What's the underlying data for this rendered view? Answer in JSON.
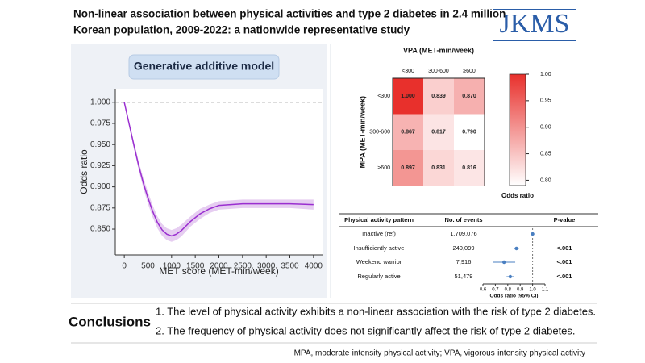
{
  "header": {
    "title_lines": [
      "Non-linear association between physical activities and type 2 diabetes in 2.4 million",
      "Korean population, 2009-2022: a nationwide representative study"
    ],
    "logo": "JKMS"
  },
  "chart_data": [
    {
      "type": "line",
      "subtitle": "Generative additive model",
      "xlabel": "MET score (MET-min/week)",
      "ylabel": "Odds ratio",
      "x": [
        0,
        100,
        200,
        300,
        400,
        500,
        600,
        700,
        800,
        900,
        1000,
        1100,
        1200,
        1400,
        1600,
        1800,
        2000,
        2500,
        3000,
        3500,
        4000
      ],
      "series": [
        {
          "color": "#9a2fd0",
          "values": [
            1.0,
            0.975,
            0.95,
            0.926,
            0.905,
            0.887,
            0.871,
            0.858,
            0.849,
            0.844,
            0.842,
            0.844,
            0.848,
            0.859,
            0.868,
            0.874,
            0.878,
            0.88,
            0.88,
            0.88,
            0.879
          ],
          "ci_lower": [
            1.0,
            0.972,
            0.946,
            0.921,
            0.899,
            0.88,
            0.864,
            0.851,
            0.842,
            0.837,
            0.835,
            0.837,
            0.841,
            0.853,
            0.862,
            0.869,
            0.873,
            0.875,
            0.875,
            0.875,
            0.873
          ],
          "ci_upper": [
            1.0,
            0.978,
            0.954,
            0.931,
            0.911,
            0.894,
            0.878,
            0.865,
            0.856,
            0.851,
            0.849,
            0.851,
            0.855,
            0.865,
            0.874,
            0.879,
            0.883,
            0.885,
            0.885,
            0.885,
            0.885
          ],
          "band_color": "#e6cdf1"
        }
      ],
      "reference_line": 1.0,
      "xlim": [
        -190,
        4190
      ],
      "xticks": [
        0,
        500,
        1000,
        1500,
        2000,
        2500,
        3000,
        3500,
        4000
      ],
      "ylim": [
        0.8195,
        1.016
      ],
      "yticks": [
        {
          "value": 0.85,
          "label": "0.850"
        },
        {
          "value": 0.875,
          "label": "0.875"
        },
        {
          "value": 0.9,
          "label": "0.900"
        },
        {
          "value": 0.925,
          "label": "0.925"
        },
        {
          "value": 0.95,
          "label": "0.950"
        },
        {
          "value": 0.975,
          "label": "0.975"
        },
        {
          "value": 1.0,
          "label": "1.000"
        }
      ]
    },
    {
      "type": "heatmap",
      "title": "VPA (MET-min/week)",
      "ylabel": "MPA (MET-min/week)",
      "columns": [
        "<300",
        "300-600",
        "≥600"
      ],
      "rows": [
        "<300",
        "300-600",
        "≥600"
      ],
      "values": [
        [
          1.0,
          0.839,
          0.87
        ],
        [
          0.867,
          0.817,
          0.79
        ],
        [
          0.897,
          0.831,
          0.816
        ]
      ],
      "value_labels": [
        [
          "1.000",
          "0.839",
          "0.870"
        ],
        [
          "0.867",
          "0.817",
          "0.790"
        ],
        [
          "0.897",
          "0.831",
          "0.816"
        ]
      ],
      "color": "#e8302c",
      "colorbar_label": "Odds ratio",
      "clim": [
        0.79,
        1.0
      ],
      "colorbar_ticks": [
        {
          "value": 0.8,
          "label": "0.80"
        },
        0.85,
        {
          "value": 0.9,
          "label": "0.90"
        },
        0.95,
        {
          "value": 1.0,
          "label": "1.00"
        }
      ]
    },
    {
      "type": "forest",
      "columns": [
        "Physical activity pattern",
        "No. of events",
        "P-value"
      ],
      "xlabel": "Odds ratio (95% CI)",
      "categories": [
        "Inactive (ref)",
        "Insufficiently active",
        "Weekend warrior",
        "Regularly active"
      ],
      "events": [
        "1,709,076",
        "240,099",
        "7,916",
        "51,479"
      ],
      "p_values": [
        null,
        "<.001",
        "<.001",
        "<.001"
      ],
      "values": [
        1.0,
        0.87,
        0.77,
        0.82
      ],
      "ci_lower": [
        null,
        0.85,
        0.68,
        0.79
      ],
      "ci_upper": [
        null,
        0.89,
        0.86,
        0.85
      ],
      "color": "#4a7fc1",
      "reference_line": 1.0,
      "xlim": [
        0.6,
        1.1
      ],
      "xticks": [
        0.6,
        0.7,
        0.8,
        0.9,
        {
          "value": 1.0,
          "label": "1.0"
        },
        1.1
      ]
    }
  ],
  "conclusions": {
    "heading": "Conclusions",
    "items": [
      "1. The level of physical activity exhibits a non-linear association with the risk of type 2 diabetes.",
      "2. The frequency of physical activity does not significantly affect the risk of type 2 diabetes."
    ]
  },
  "footnote": "MPA, moderate-intensity physical activity; VPA, vigorous-intensity physical activity"
}
